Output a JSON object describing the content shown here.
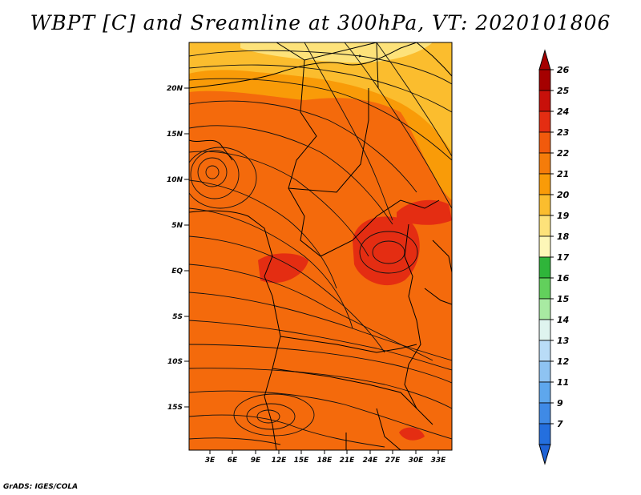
{
  "title": "WBPT [C] and Sreamline at 300hPa, VT: 2020101806",
  "credit": "GrADS: IGES/COLA",
  "map": {
    "lat_labels": [
      "20N",
      "15N",
      "10N",
      "5N",
      "EQ",
      "5S",
      "10S",
      "15S"
    ],
    "lon_labels": [
      "3E",
      "6E",
      "9E",
      "12E",
      "15E",
      "18E",
      "21E",
      "24E",
      "27E",
      "30E",
      "33E"
    ],
    "background_color": "#f46a0c"
  },
  "colorbar": {
    "levels": [
      "26",
      "25",
      "24",
      "23",
      "22",
      "21",
      "20",
      "19",
      "18",
      "17",
      "16",
      "15",
      "14",
      "13",
      "12",
      "11",
      "9",
      "7"
    ],
    "colors": [
      "#a50000",
      "#c8100a",
      "#e42d12",
      "#f15a0c",
      "#f57c0a",
      "#f99b08",
      "#fbbd2e",
      "#fde27a",
      "#fdf7b8",
      "#2fb53a",
      "#62d05c",
      "#a8eaa2",
      "#dff4ef",
      "#b9dcf7",
      "#8ec3f2",
      "#5ea7ed",
      "#3f8ae6",
      "#246fde"
    ],
    "top_arrow_color": "#a50000",
    "bottom_arrow_color": "#1f63d6"
  }
}
